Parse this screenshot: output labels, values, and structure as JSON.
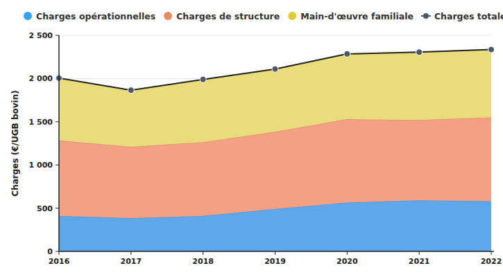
{
  "chart_data": {
    "type": "area",
    "stacked": true,
    "grid": true,
    "legend": "top",
    "y_label": "Charges (€/UGB bovin)",
    "categories": [
      "2016",
      "2017",
      "2018",
      "2019",
      "2020",
      "2021",
      "2022"
    ],
    "ylim": [
      0,
      2500
    ],
    "yticks": [
      0,
      500,
      {
        "value": 1000,
        "label": "1 000"
      },
      {
        "value": 1500,
        "label": "1 500"
      },
      {
        "value": 2000,
        "label": "2 000"
      },
      {
        "value": 2500,
        "label": "2 500"
      }
    ],
    "series": [
      {
        "name": "Charges opérationnelles",
        "color": "#5ea8ea",
        "type": "area",
        "values": [
          410,
          385,
          410,
          490,
          565,
          590,
          580
        ]
      },
      {
        "name": "Charges de structure",
        "color": "#f4a084",
        "type": "area",
        "values": [
          875,
          825,
          855,
          895,
          965,
          930,
          970
        ]
      },
      {
        "name": "Main-d'œuvre familiale",
        "color": "#e9dc7a",
        "type": "area",
        "values": [
          720,
          655,
          725,
          725,
          755,
          785,
          785
        ]
      },
      {
        "name": "Charges totales",
        "color": "#4a5866",
        "type": "line",
        "marker": "circle",
        "values": [
          2005,
          1865,
          1990,
          2110,
          2285,
          2305,
          2335
        ]
      }
    ]
  }
}
